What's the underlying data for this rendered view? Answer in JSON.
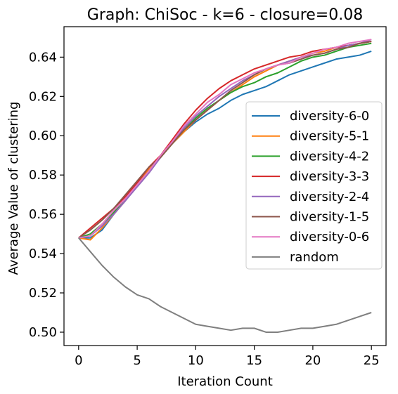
{
  "chart_data": {
    "type": "line",
    "title": "Graph: ChiSoc - k=6 - closure=0.08",
    "xlabel": "Iteration Count",
    "ylabel": "Average Value of clustering",
    "xlim": [
      -1.25,
      26.25
    ],
    "ylim": [
      0.4932,
      0.6555
    ],
    "xticks": [
      0,
      5,
      10,
      15,
      20,
      25
    ],
    "yticks": [
      0.5,
      0.52,
      0.54,
      0.56,
      0.58,
      0.6,
      0.62,
      0.64
    ],
    "ytick_labels": [
      "0.50",
      "0.52",
      "0.54",
      "0.56",
      "0.58",
      "0.60",
      "0.62",
      "0.64"
    ],
    "legend_position": "center-right",
    "grid": false,
    "x": [
      0,
      1,
      2,
      3,
      4,
      5,
      6,
      7,
      8,
      9,
      10,
      11,
      12,
      13,
      14,
      15,
      16,
      17,
      18,
      19,
      20,
      21,
      22,
      23,
      24,
      25
    ],
    "series": [
      {
        "name": "diversity-6-0",
        "color": "#1f77b4",
        "values": [
          0.548,
          0.548,
          0.552,
          0.56,
          0.567,
          0.575,
          0.582,
          0.589,
          0.596,
          0.602,
          0.607,
          0.611,
          0.614,
          0.618,
          0.621,
          0.623,
          0.625,
          0.628,
          0.631,
          0.633,
          0.635,
          0.637,
          0.639,
          0.64,
          0.641,
          0.643
        ]
      },
      {
        "name": "diversity-5-1",
        "color": "#ff7f0e",
        "values": [
          0.548,
          0.547,
          0.553,
          0.56,
          0.567,
          0.575,
          0.583,
          0.589,
          0.596,
          0.602,
          0.608,
          0.613,
          0.618,
          0.622,
          0.626,
          0.63,
          0.633,
          0.636,
          0.638,
          0.64,
          0.642,
          0.643,
          0.645,
          0.646,
          0.647,
          0.648
        ]
      },
      {
        "name": "diversity-4-2",
        "color": "#2ca02c",
        "values": [
          0.548,
          0.55,
          0.555,
          0.561,
          0.567,
          0.575,
          0.582,
          0.589,
          0.596,
          0.603,
          0.609,
          0.614,
          0.618,
          0.622,
          0.625,
          0.627,
          0.63,
          0.632,
          0.635,
          0.638,
          0.64,
          0.641,
          0.643,
          0.645,
          0.646,
          0.647
        ]
      },
      {
        "name": "diversity-3-3",
        "color": "#d62728",
        "values": [
          0.548,
          0.553,
          0.558,
          0.563,
          0.569,
          0.576,
          0.584,
          0.59,
          0.598,
          0.606,
          0.613,
          0.619,
          0.624,
          0.628,
          0.631,
          0.634,
          0.636,
          0.638,
          0.64,
          0.641,
          0.643,
          0.644,
          0.645,
          0.646,
          0.647,
          0.648
        ]
      },
      {
        "name": "diversity-2-4",
        "color": "#9467bd",
        "values": [
          0.548,
          0.549,
          0.554,
          0.56,
          0.567,
          0.574,
          0.581,
          0.589,
          0.597,
          0.604,
          0.61,
          0.615,
          0.62,
          0.624,
          0.628,
          0.631,
          0.634,
          0.636,
          0.638,
          0.64,
          0.641,
          0.642,
          0.644,
          0.646,
          0.647,
          0.649
        ]
      },
      {
        "name": "diversity-1-5",
        "color": "#8c564b",
        "values": [
          0.548,
          0.552,
          0.557,
          0.563,
          0.57,
          0.577,
          0.584,
          0.589,
          0.596,
          0.603,
          0.608,
          0.613,
          0.618,
          0.623,
          0.627,
          0.631,
          0.634,
          0.636,
          0.637,
          0.639,
          0.641,
          0.642,
          0.644,
          0.645,
          0.647,
          0.648
        ]
      },
      {
        "name": "diversity-0-6",
        "color": "#e377c2",
        "values": [
          0.548,
          0.549,
          0.555,
          0.562,
          0.568,
          0.575,
          0.582,
          0.59,
          0.597,
          0.605,
          0.611,
          0.617,
          0.621,
          0.626,
          0.629,
          0.632,
          0.634,
          0.636,
          0.637,
          0.64,
          0.642,
          0.644,
          0.645,
          0.647,
          0.648,
          0.649
        ]
      },
      {
        "name": "random",
        "color": "#7f7f7f",
        "values": [
          0.548,
          0.541,
          0.534,
          0.528,
          0.523,
          0.519,
          0.517,
          0.513,
          0.51,
          0.507,
          0.504,
          0.503,
          0.502,
          0.501,
          0.502,
          0.502,
          0.5,
          0.5,
          0.501,
          0.502,
          0.502,
          0.503,
          0.504,
          0.506,
          0.508,
          0.51
        ]
      }
    ]
  }
}
